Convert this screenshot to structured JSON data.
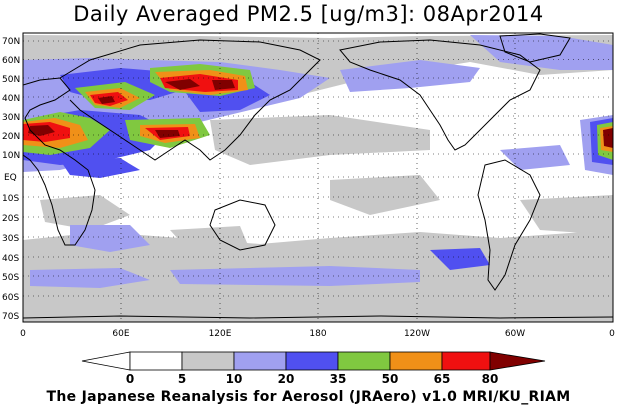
{
  "title": "Daily Averaged PM2.5 [ug/m3]: 08Apr2014",
  "credit": "The Japanese Reanalysis for Aerosol (JRAero) v1.0 MRI/KU_RIAM",
  "lat_labels": [
    "70N",
    "60N",
    "50N",
    "40N",
    "30N",
    "20N",
    "10N",
    "EQ",
    "10S",
    "20S",
    "30S",
    "40S",
    "50S",
    "60S",
    "70S"
  ],
  "lon_labels": [
    "0",
    "60E",
    "120E",
    "180",
    "120W",
    "60W",
    "0"
  ],
  "colorbar": {
    "thresholds": [
      "0",
      "5",
      "10",
      "20",
      "35",
      "50",
      "65",
      "80"
    ],
    "colors": [
      "#ffffff",
      "#c8c8c8",
      "#a0a0f0",
      "#5050f0",
      "#80c840",
      "#f09018",
      "#f01010",
      "#800000"
    ]
  },
  "colors": {
    "land_outline": "#000000",
    "light_gray": "#c8c8c8",
    "light_blue": "#a0a0f0",
    "blue": "#5050f0",
    "green": "#80c840",
    "orange": "#f09018",
    "red": "#f01010",
    "dark_red": "#800000"
  }
}
